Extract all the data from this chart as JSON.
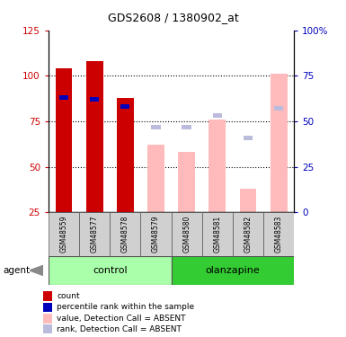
{
  "title": "GDS2608 / 1380902_at",
  "samples": [
    "GSM48559",
    "GSM48577",
    "GSM48578",
    "GSM48579",
    "GSM48580",
    "GSM48581",
    "GSM48582",
    "GSM48583"
  ],
  "count_values": [
    104,
    108,
    88,
    null,
    null,
    null,
    null,
    null
  ],
  "rank_values": [
    63,
    62,
    58,
    null,
    null,
    null,
    null,
    null
  ],
  "absent_value_values": [
    null,
    null,
    null,
    62,
    58,
    76,
    38,
    101
  ],
  "absent_rank_values": [
    null,
    null,
    null,
    47,
    47,
    53,
    41,
    57
  ],
  "left_ylim": [
    25,
    125
  ],
  "left_yticks": [
    25,
    50,
    75,
    100,
    125
  ],
  "right_yticks": [
    0,
    25,
    50,
    75,
    100
  ],
  "count_color": "#cc0000",
  "rank_color": "#0000bb",
  "absent_value_color": "#ffbbbb",
  "absent_rank_color": "#bbbbdd",
  "tick_color_left": "#cc0000",
  "tick_color_right": "#0000bb",
  "control_color": "#aaeea a",
  "olanzapine_color": "#33cc33",
  "group_label_control": "control",
  "group_label_olanzapine": "olanzapine",
  "agent_label": "agent",
  "legend_items": [
    {
      "label": "count",
      "color": "#cc0000"
    },
    {
      "label": "percentile rank within the sample",
      "color": "#0000bb"
    },
    {
      "label": "value, Detection Call = ABSENT",
      "color": "#ffbbbb"
    },
    {
      "label": "rank, Detection Call = ABSENT",
      "color": "#bbbbdd"
    }
  ]
}
